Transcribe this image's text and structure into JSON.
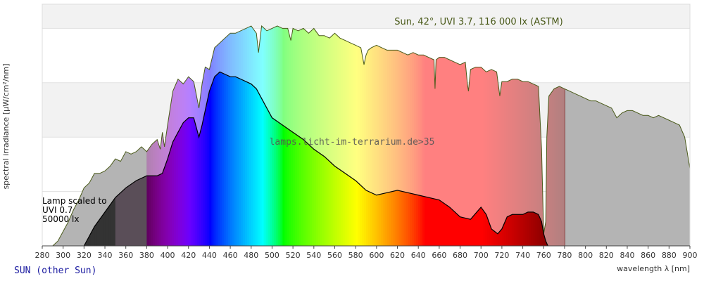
{
  "chart_data": {
    "type": "area",
    "xlabel": "wavelength λ [nm]",
    "ylabel": "spectral irradiance [µW/cm²/nm]",
    "xlim": [
      280,
      900
    ],
    "x_ticks": [
      280,
      300,
      320,
      340,
      360,
      380,
      400,
      420,
      440,
      460,
      480,
      500,
      520,
      540,
      560,
      580,
      600,
      620,
      640,
      660,
      680,
      700,
      720,
      740,
      760,
      780,
      800,
      820,
      840,
      860,
      880,
      900
    ],
    "ylim": [
      0,
      1
    ],
    "y_gridlines": [
      0.225,
      0.45,
      0.675,
      0.9
    ],
    "grid": "horizontal bands",
    "colors": {
      "reference_fill": "#b4b4b4",
      "reference_outline": "#4a5a1a",
      "lamp_outline": "#000000",
      "band_shade": "#f2f2f2",
      "uv_fill_gray": "#aaaaaa"
    },
    "reference": {
      "label": "Sun, 42°, UVI 3.7, 116 000 lx (ASTM)",
      "x": [
        290,
        295,
        300,
        305,
        310,
        315,
        320,
        325,
        330,
        335,
        340,
        345,
        350,
        355,
        360,
        365,
        370,
        375,
        380,
        385,
        390,
        393,
        395,
        397,
        400,
        405,
        410,
        415,
        420,
        425,
        430,
        433,
        436,
        440,
        445,
        450,
        455,
        460,
        465,
        470,
        475,
        480,
        485,
        487,
        490,
        495,
        500,
        505,
        510,
        515,
        518,
        520,
        525,
        530,
        535,
        540,
        545,
        550,
        555,
        560,
        565,
        570,
        575,
        580,
        585,
        588,
        590,
        592,
        595,
        600,
        605,
        610,
        615,
        620,
        625,
        630,
        635,
        640,
        645,
        650,
        655,
        656,
        657,
        660,
        665,
        670,
        675,
        680,
        685,
        687,
        688,
        690,
        695,
        700,
        705,
        710,
        715,
        718,
        720,
        725,
        730,
        735,
        740,
        745,
        750,
        755,
        758,
        760,
        762,
        763,
        765,
        770,
        775,
        780,
        785,
        790,
        795,
        800,
        805,
        810,
        815,
        820,
        825,
        830,
        835,
        840,
        845,
        850,
        855,
        860,
        865,
        870,
        875,
        880,
        885,
        890,
        895,
        900
      ],
      "y": [
        0.0,
        0.02,
        0.06,
        0.1,
        0.15,
        0.19,
        0.24,
        0.26,
        0.3,
        0.3,
        0.31,
        0.33,
        0.36,
        0.35,
        0.39,
        0.38,
        0.39,
        0.41,
        0.39,
        0.42,
        0.44,
        0.4,
        0.47,
        0.41,
        0.5,
        0.64,
        0.69,
        0.67,
        0.7,
        0.68,
        0.57,
        0.67,
        0.74,
        0.73,
        0.82,
        0.84,
        0.86,
        0.88,
        0.88,
        0.89,
        0.9,
        0.91,
        0.88,
        0.8,
        0.91,
        0.89,
        0.9,
        0.91,
        0.9,
        0.9,
        0.85,
        0.9,
        0.89,
        0.9,
        0.88,
        0.9,
        0.87,
        0.87,
        0.86,
        0.88,
        0.86,
        0.85,
        0.84,
        0.83,
        0.82,
        0.75,
        0.79,
        0.81,
        0.82,
        0.83,
        0.82,
        0.81,
        0.81,
        0.81,
        0.8,
        0.79,
        0.8,
        0.79,
        0.79,
        0.78,
        0.77,
        0.65,
        0.77,
        0.78,
        0.78,
        0.77,
        0.76,
        0.75,
        0.76,
        0.67,
        0.64,
        0.73,
        0.74,
        0.74,
        0.72,
        0.73,
        0.72,
        0.62,
        0.68,
        0.68,
        0.69,
        0.69,
        0.68,
        0.68,
        0.67,
        0.66,
        0.4,
        0.05,
        0.1,
        0.45,
        0.62,
        0.65,
        0.66,
        0.65,
        0.64,
        0.63,
        0.62,
        0.61,
        0.6,
        0.6,
        0.59,
        0.58,
        0.57,
        0.53,
        0.55,
        0.56,
        0.56,
        0.55,
        0.54,
        0.54,
        0.53,
        0.54,
        0.53,
        0.52,
        0.51,
        0.5,
        0.45,
        0.32
      ]
    },
    "lamp": {
      "label_lines": [
        "Lamp scaled to",
        "UVI 0.7",
        "50000 lx"
      ],
      "x": [
        320,
        330,
        340,
        350,
        360,
        370,
        380,
        385,
        390,
        395,
        400,
        405,
        410,
        415,
        420,
        425,
        430,
        433,
        436,
        440,
        445,
        450,
        455,
        460,
        465,
        470,
        475,
        480,
        485,
        490,
        495,
        500,
        510,
        520,
        530,
        540,
        550,
        560,
        570,
        580,
        590,
        600,
        610,
        620,
        630,
        640,
        650,
        660,
        670,
        680,
        690,
        700,
        705,
        710,
        713,
        716,
        720,
        725,
        730,
        735,
        740,
        745,
        750,
        755,
        758,
        760,
        762,
        764
      ],
      "y": [
        0.0,
        0.08,
        0.14,
        0.2,
        0.24,
        0.27,
        0.29,
        0.29,
        0.29,
        0.3,
        0.36,
        0.43,
        0.47,
        0.51,
        0.53,
        0.53,
        0.45,
        0.5,
        0.56,
        0.64,
        0.7,
        0.72,
        0.71,
        0.7,
        0.7,
        0.69,
        0.68,
        0.67,
        0.65,
        0.61,
        0.57,
        0.53,
        0.5,
        0.47,
        0.44,
        0.4,
        0.37,
        0.33,
        0.3,
        0.27,
        0.23,
        0.21,
        0.22,
        0.23,
        0.22,
        0.21,
        0.2,
        0.19,
        0.16,
        0.12,
        0.11,
        0.16,
        0.13,
        0.07,
        0.06,
        0.05,
        0.07,
        0.12,
        0.13,
        0.13,
        0.13,
        0.14,
        0.14,
        0.13,
        0.1,
        0.05,
        0.02,
        0.0
      ]
    },
    "watermark": "lamps.licht-im-terrarium.de>35"
  },
  "footer": {
    "label": "SUN (other Sun)"
  }
}
